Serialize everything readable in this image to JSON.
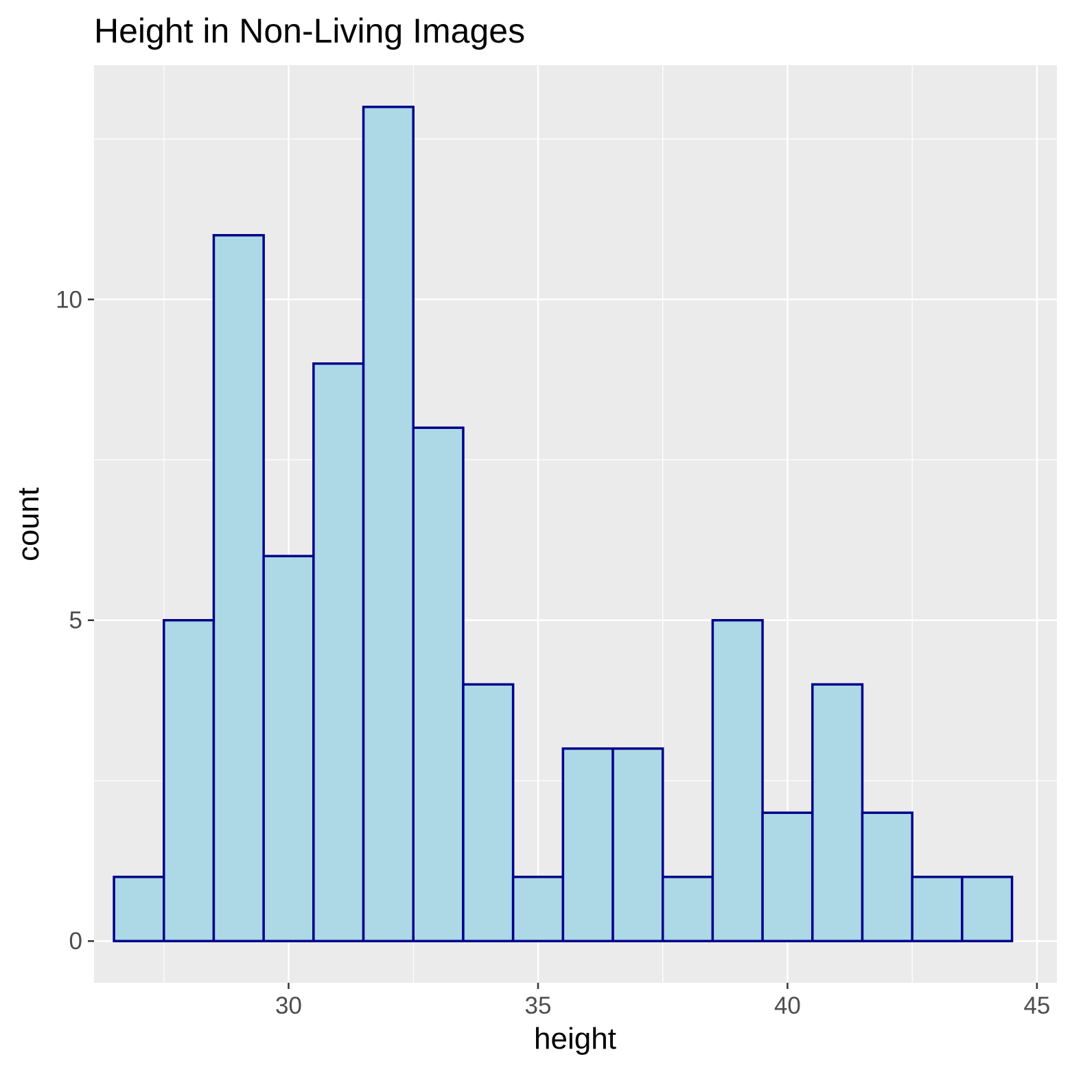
{
  "chart_data": {
    "type": "bar",
    "subtype": "histogram",
    "title": "Height in Non-Living Images",
    "xlabel": "height",
    "ylabel": "count",
    "bin_width": 1,
    "bin_centers": [
      27,
      28,
      29,
      30,
      31,
      32,
      33,
      34,
      35,
      36,
      37,
      38,
      39,
      40,
      41,
      42,
      43,
      44
    ],
    "values": [
      1,
      5,
      11,
      6,
      9,
      13,
      8,
      4,
      1,
      3,
      3,
      1,
      5,
      2,
      4,
      2,
      1,
      1
    ],
    "xlim": [
      26.1,
      45.4
    ],
    "ylim": [
      -0.65,
      13.65
    ],
    "x_ticks": [
      30,
      35,
      40,
      45
    ],
    "x_tick_labels": [
      "30",
      "35",
      "40",
      "45"
    ],
    "y_ticks": [
      0,
      5,
      10
    ],
    "y_tick_labels": [
      "0",
      "5",
      "10"
    ],
    "grid": true,
    "colors": {
      "panel_background": "#ebebeb",
      "grid_line": "#ffffff",
      "bar_fill": "#add8e6",
      "bar_outline": "#00008b"
    }
  }
}
